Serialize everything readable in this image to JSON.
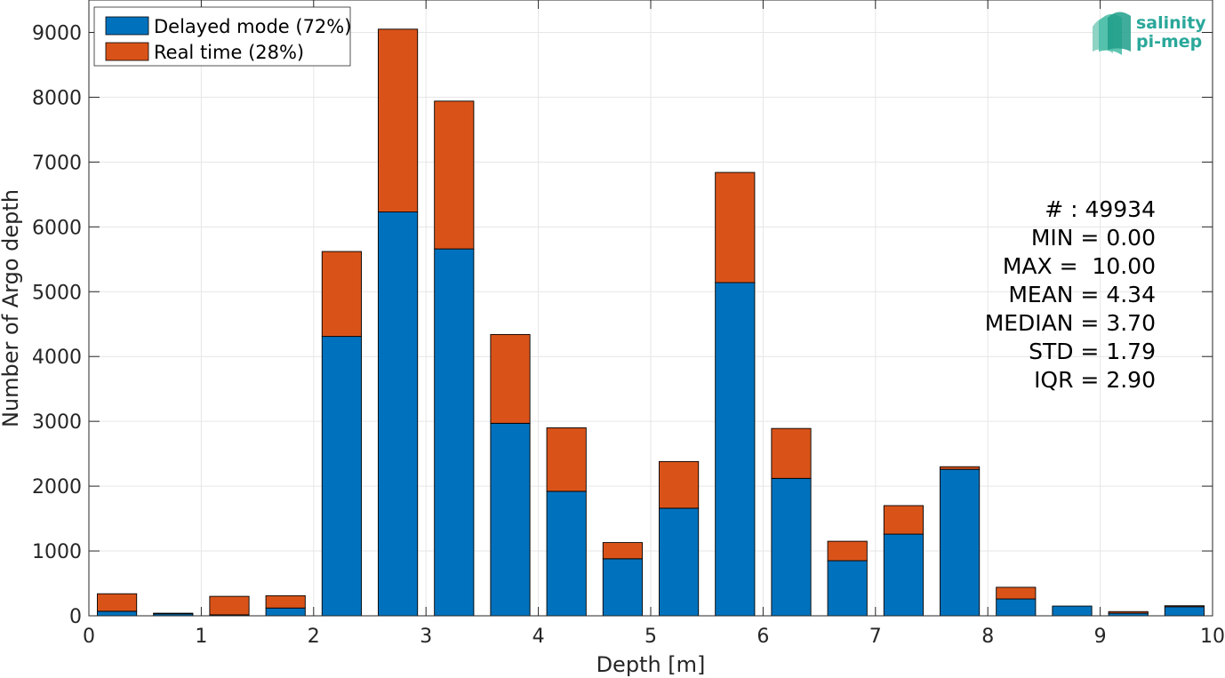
{
  "chart_data": {
    "type": "bar",
    "stacked": true,
    "xlabel": "Depth [m]",
    "ylabel": "Number of Argo depth",
    "xlim": [
      0,
      10
    ],
    "ylim": [
      0,
      9500
    ],
    "xticks": [
      "0",
      "1",
      "2",
      "3",
      "4",
      "5",
      "6",
      "7",
      "8",
      "9",
      "10"
    ],
    "yticks": [
      "0",
      "1000",
      "2000",
      "3000",
      "4000",
      "5000",
      "6000",
      "7000",
      "8000",
      "9000"
    ],
    "grid": true,
    "legend_position": "top-left",
    "bin_width": 0.5,
    "x": [
      0.25,
      0.75,
      1.25,
      1.75,
      2.25,
      2.75,
      3.25,
      3.75,
      4.25,
      4.75,
      5.25,
      5.75,
      6.25,
      6.75,
      7.25,
      7.75,
      8.25,
      8.75,
      9.25,
      9.75
    ],
    "series": [
      {
        "name": "Delayed mode (72%)",
        "color": "#0072bd",
        "values": [
          70,
          30,
          15,
          120,
          4310,
          6230,
          5660,
          2970,
          1920,
          880,
          1660,
          5140,
          2120,
          850,
          1260,
          2260,
          260,
          150,
          40,
          140
        ]
      },
      {
        "name": "Real time (28%)",
        "color": "#d95319",
        "values": [
          270,
          10,
          285,
          190,
          1310,
          2820,
          2280,
          1370,
          980,
          250,
          720,
          1700,
          770,
          300,
          440,
          40,
          180,
          0,
          25,
          15
        ]
      }
    ],
    "stats": [
      "# : 49934",
      "MIN = 0.00",
      "MAX =  10.00",
      "MEAN = 4.34",
      "MEDIAN = 3.70",
      "STD = 1.79",
      "IQR = 2.90"
    ]
  },
  "logo": {
    "line1": "salinity",
    "line2": "pi-mep"
  }
}
